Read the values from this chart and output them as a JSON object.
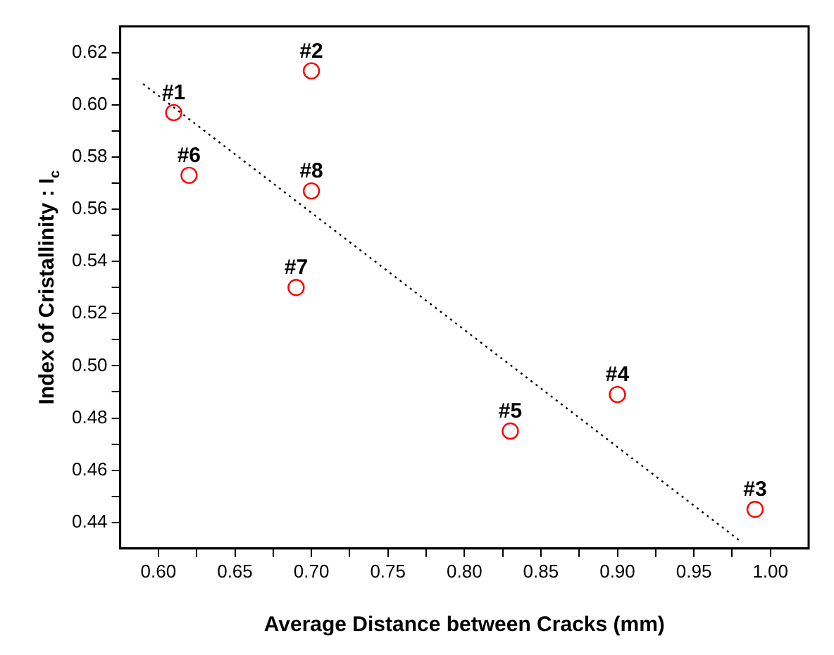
{
  "chart_data": {
    "type": "scatter",
    "xlabel": "Average Distance between Cracks (mm)",
    "ylabel": "Index of Cristallinity : I$_{c}$",
    "x": [
      0.61,
      0.7,
      0.99,
      0.9,
      0.83,
      0.62,
      0.69,
      0.7
    ],
    "series": [
      {
        "color": "#ff0000",
        "marker": "circle",
        "values": [
          0.597,
          0.613,
          0.445,
          0.489,
          0.475,
          0.573,
          0.53,
          0.567
        ]
      },
      {
        "type": "line",
        "color": "#000000",
        "line_style": "dotted",
        "marker": "none",
        "x": [
          0.59,
          0.98
        ],
        "values": [
          0.608,
          0.433
        ]
      }
    ],
    "xlim": [
      0.575,
      1.025
    ],
    "xticks": [
      {
        "value": 0.6,
        "label": "0.60"
      },
      {
        "value": 0.625,
        "label": null
      },
      0.65,
      {
        "value": 0.675,
        "label": null
      },
      {
        "value": 0.7,
        "label": "0.70"
      },
      {
        "value": 0.725,
        "label": null
      },
      0.75,
      {
        "value": 0.775,
        "label": null
      },
      {
        "value": 0.8,
        "label": "0.80"
      },
      {
        "value": 0.825,
        "label": null
      },
      0.85,
      {
        "value": 0.875,
        "label": null
      },
      {
        "value": 0.9,
        "label": "0.90"
      },
      {
        "value": 0.925,
        "label": null
      },
      0.95,
      {
        "value": 0.975,
        "label": null
      },
      {
        "value": 1.0,
        "label": "1.00"
      }
    ],
    "ylim": [
      0.43,
      0.63
    ],
    "yticks": [
      0.44,
      {
        "value": 0.45,
        "label": null
      },
      0.46,
      {
        "value": 0.47,
        "label": null
      },
      0.48,
      {
        "value": 0.49,
        "label": null
      },
      {
        "value": 0.5,
        "label": "0.50"
      },
      {
        "value": 0.51,
        "label": null
      },
      0.52,
      {
        "value": 0.53,
        "label": null
      },
      0.54,
      {
        "value": 0.55,
        "label": null
      },
      0.56,
      {
        "value": 0.57,
        "label": null
      },
      0.58,
      {
        "value": 0.59,
        "label": null
      },
      {
        "value": 0.6,
        "label": "0.60"
      },
      {
        "value": 0.61,
        "label": null
      },
      0.62
    ],
    "grid": false,
    "legend": false,
    "annotations": [
      {
        "text": "#1",
        "x": 0.61,
        "y": 0.597
      },
      {
        "text": "#2",
        "x": 0.7,
        "y": 0.613
      },
      {
        "text": "#3",
        "x": 0.99,
        "y": 0.445
      },
      {
        "text": "#4",
        "x": 0.9,
        "y": 0.489
      },
      {
        "text": "#5",
        "x": 0.83,
        "y": 0.475
      },
      {
        "text": "#6",
        "x": 0.62,
        "y": 0.573
      },
      {
        "text": "#7",
        "x": 0.69,
        "y": 0.53
      },
      {
        "text": "#8",
        "x": 0.7,
        "y": 0.567
      }
    ]
  }
}
